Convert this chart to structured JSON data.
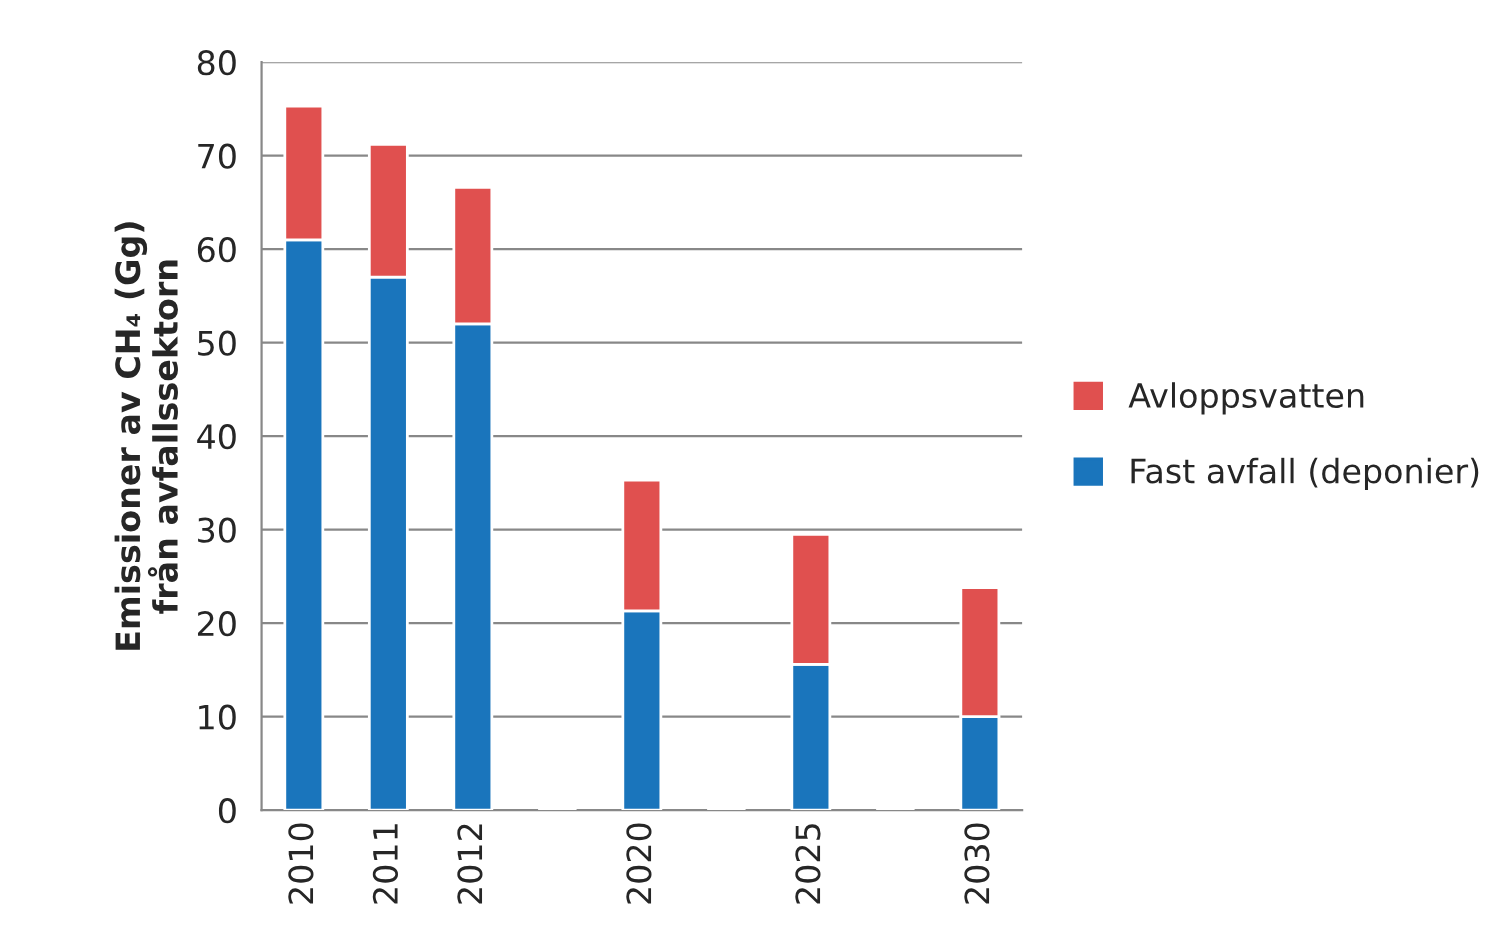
{
  "chart_data": {
    "type": "bar",
    "stacked": true,
    "ylabel": "Emissioner av CH₄ (Gg)\nfrån avfallssektorn",
    "categories": [
      "2010",
      "2011",
      "2012",
      null,
      "2020",
      null,
      "2025",
      null,
      "2030"
    ],
    "series": [
      {
        "name": "Fast avfall (deponier)",
        "color": "#1a75bc",
        "values": [
          61,
          57,
          52,
          null,
          21.3,
          null,
          15.6,
          null,
          10
        ]
      },
      {
        "name": "Avloppsvatten",
        "color": "#e0504f",
        "values": [
          14.3,
          14.2,
          14.6,
          null,
          14,
          null,
          13.9,
          null,
          13.8
        ]
      }
    ],
    "ylim": [
      0,
      80
    ],
    "yticks": [
      0,
      10,
      20,
      30,
      40,
      50,
      60,
      70,
      80
    ],
    "grid": "y",
    "legend": "right"
  }
}
